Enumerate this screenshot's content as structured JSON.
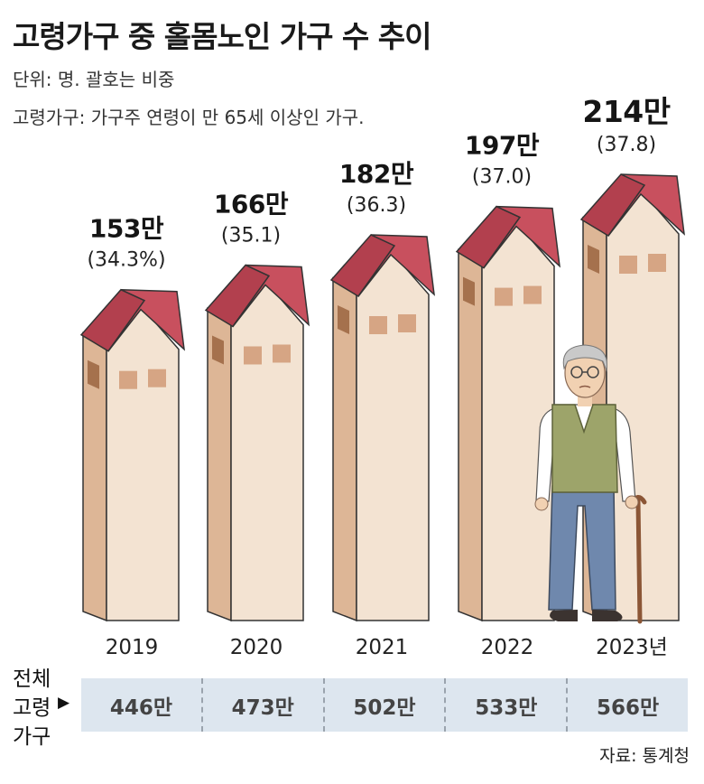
{
  "title": "고령가구 중 홀몸노인 가구 수 추이",
  "unit_note": "단위: 명. 괄호는 비중",
  "definition_note": "고령가구: 가구주 연령이 만 65세 이상인 가구.",
  "chart_data": {
    "type": "bar",
    "categories": [
      "2019",
      "2020",
      "2021",
      "2022",
      "2023년"
    ],
    "series": [
      {
        "values": [
          153,
          166,
          182,
          197,
          214
        ]
      }
    ],
    "value_labels": [
      "153만",
      "166만",
      "182만",
      "197만",
      "214만"
    ],
    "share_labels": [
      "(34.3%)",
      "(35.1)",
      "(36.3)",
      "(37.0)",
      "(37.8)"
    ],
    "shares": [
      34.3,
      35.1,
      36.3,
      37.0,
      37.8
    ],
    "ylim": [
      0,
      214
    ],
    "bar_style": "house-shaped tall buildings",
    "colors": {
      "roof": "#c8505e",
      "wall_front": "#f3e3d2",
      "wall_side": "#ddb696",
      "window": "#d6a584"
    }
  },
  "total_households": {
    "label": "전체 고령 가구",
    "label_lines": [
      "전체",
      "고령",
      "가구"
    ],
    "arrow": "▶",
    "values": [
      "446만",
      "473만",
      "502만",
      "533만",
      "566만"
    ]
  },
  "source": "자료: 통계청",
  "illustration": "elderly man with cane"
}
